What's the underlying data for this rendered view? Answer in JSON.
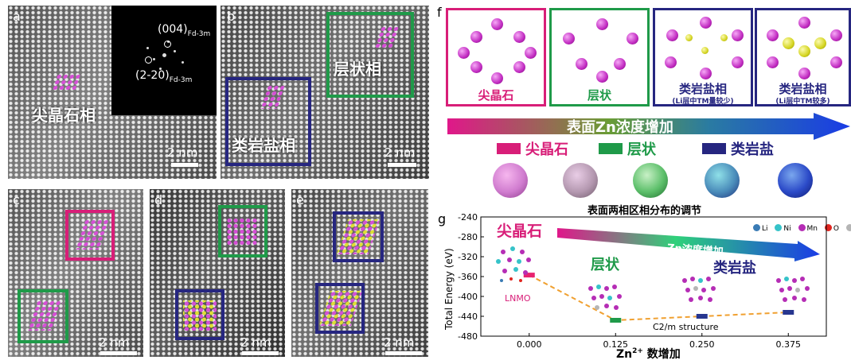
{
  "panels": {
    "a": {
      "letter": "a",
      "phase": "尖晶石相",
      "scale": "2 nm",
      "fft_label_top": "(004)",
      "fft_label_top_sub": "Fd-3m",
      "fft_label_bottom": "(2-20)",
      "fft_label_bottom_sub": "Fd-3m"
    },
    "b": {
      "letter": "b",
      "phase_layered": "层状相",
      "phase_rocksalt": "类岩盐相",
      "scale": "2 nm"
    },
    "c": {
      "letter": "c",
      "scale": "2 nm"
    },
    "d": {
      "letter": "d",
      "scale": "2 nm"
    },
    "e": {
      "letter": "e",
      "scale": "2 nm"
    }
  },
  "panel_f": {
    "letter": "f",
    "cards": [
      {
        "label": "尖晶石",
        "sub": "",
        "color": "#d81e78"
      },
      {
        "label": "层状",
        "sub": "",
        "color": "#1f9a49"
      },
      {
        "label": "类岩盐相",
        "sub": "(Li层中TM量较少)",
        "color": "#262680"
      },
      {
        "label": "类岩盐相",
        "sub": "(Li层中TM较多)",
        "color": "#262680"
      }
    ],
    "arrow_text": "表面Zn浓度增加",
    "legend": [
      {
        "label": "尖晶石",
        "color": "#d81e78"
      },
      {
        "label": "层状",
        "color": "#1f9a49"
      },
      {
        "label": "类岩盐",
        "color": "#262680"
      }
    ],
    "caption": "表面两相区相分布的调节"
  },
  "panel_g": {
    "letter": "g",
    "atom_legend": [
      {
        "name": "Li",
        "color": "#3a7bb5"
      },
      {
        "name": "Ni",
        "color": "#36c3c9"
      },
      {
        "name": "Mn",
        "color": "#b52db5"
      },
      {
        "name": "O",
        "color": "#e0251f"
      },
      {
        "name": "Zn",
        "color": "#b5b5b5"
      }
    ],
    "annot_spinel": "尖晶石",
    "annot_layered": "层状",
    "annot_rocksalt": "类岩盐",
    "arrow_text": "Zn浓度增加",
    "annot_lnmo": "LNMO",
    "annot_c2m": "C2/m structure",
    "xlabel_prefix": "Zn",
    "xlabel_sup": "2+",
    "xlabel_suffix": " 数增加",
    "ylabel": "Total Energy (eV)"
  },
  "chart_data": {
    "type": "scatter",
    "x": [
      0.0,
      0.125,
      0.25,
      0.375
    ],
    "xtick_labels": [
      "0.000",
      "0.125",
      "0.250",
      "0.375"
    ],
    "y": [
      -357,
      -448,
      -440,
      -432
    ],
    "xlim": [
      -0.07,
      0.43
    ],
    "ylim": [
      -480,
      -240
    ],
    "yticks": [
      -240,
      -280,
      -320,
      -360,
      -400,
      -440,
      -480
    ],
    "marker_colors": [
      "#e8226f",
      "#1f9a49",
      "#27368f",
      "#27368f"
    ],
    "line_color": "#f0a030",
    "grid": false
  }
}
